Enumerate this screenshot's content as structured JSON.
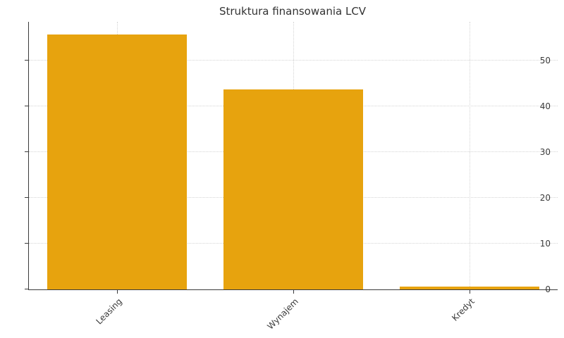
{
  "chart_data": {
    "type": "bar",
    "title": "Struktura finansowania LCV",
    "categories": [
      "Leasing",
      "Wynajem",
      "Kredyt"
    ],
    "values": [
      55.7,
      43.7,
      0.6
    ],
    "xlabel": "",
    "ylabel": "",
    "ylim": [
      0,
      58.5
    ],
    "yticks": [
      0,
      10,
      20,
      30,
      40,
      50
    ],
    "x_tick_rotation": 45,
    "legend": "none",
    "grid": "dotted",
    "bar_color": "#e7a30e",
    "spine_color": "#3b3b3b",
    "gridline_color": "#d4d4d4",
    "bar_width_fraction": 0.79
  }
}
